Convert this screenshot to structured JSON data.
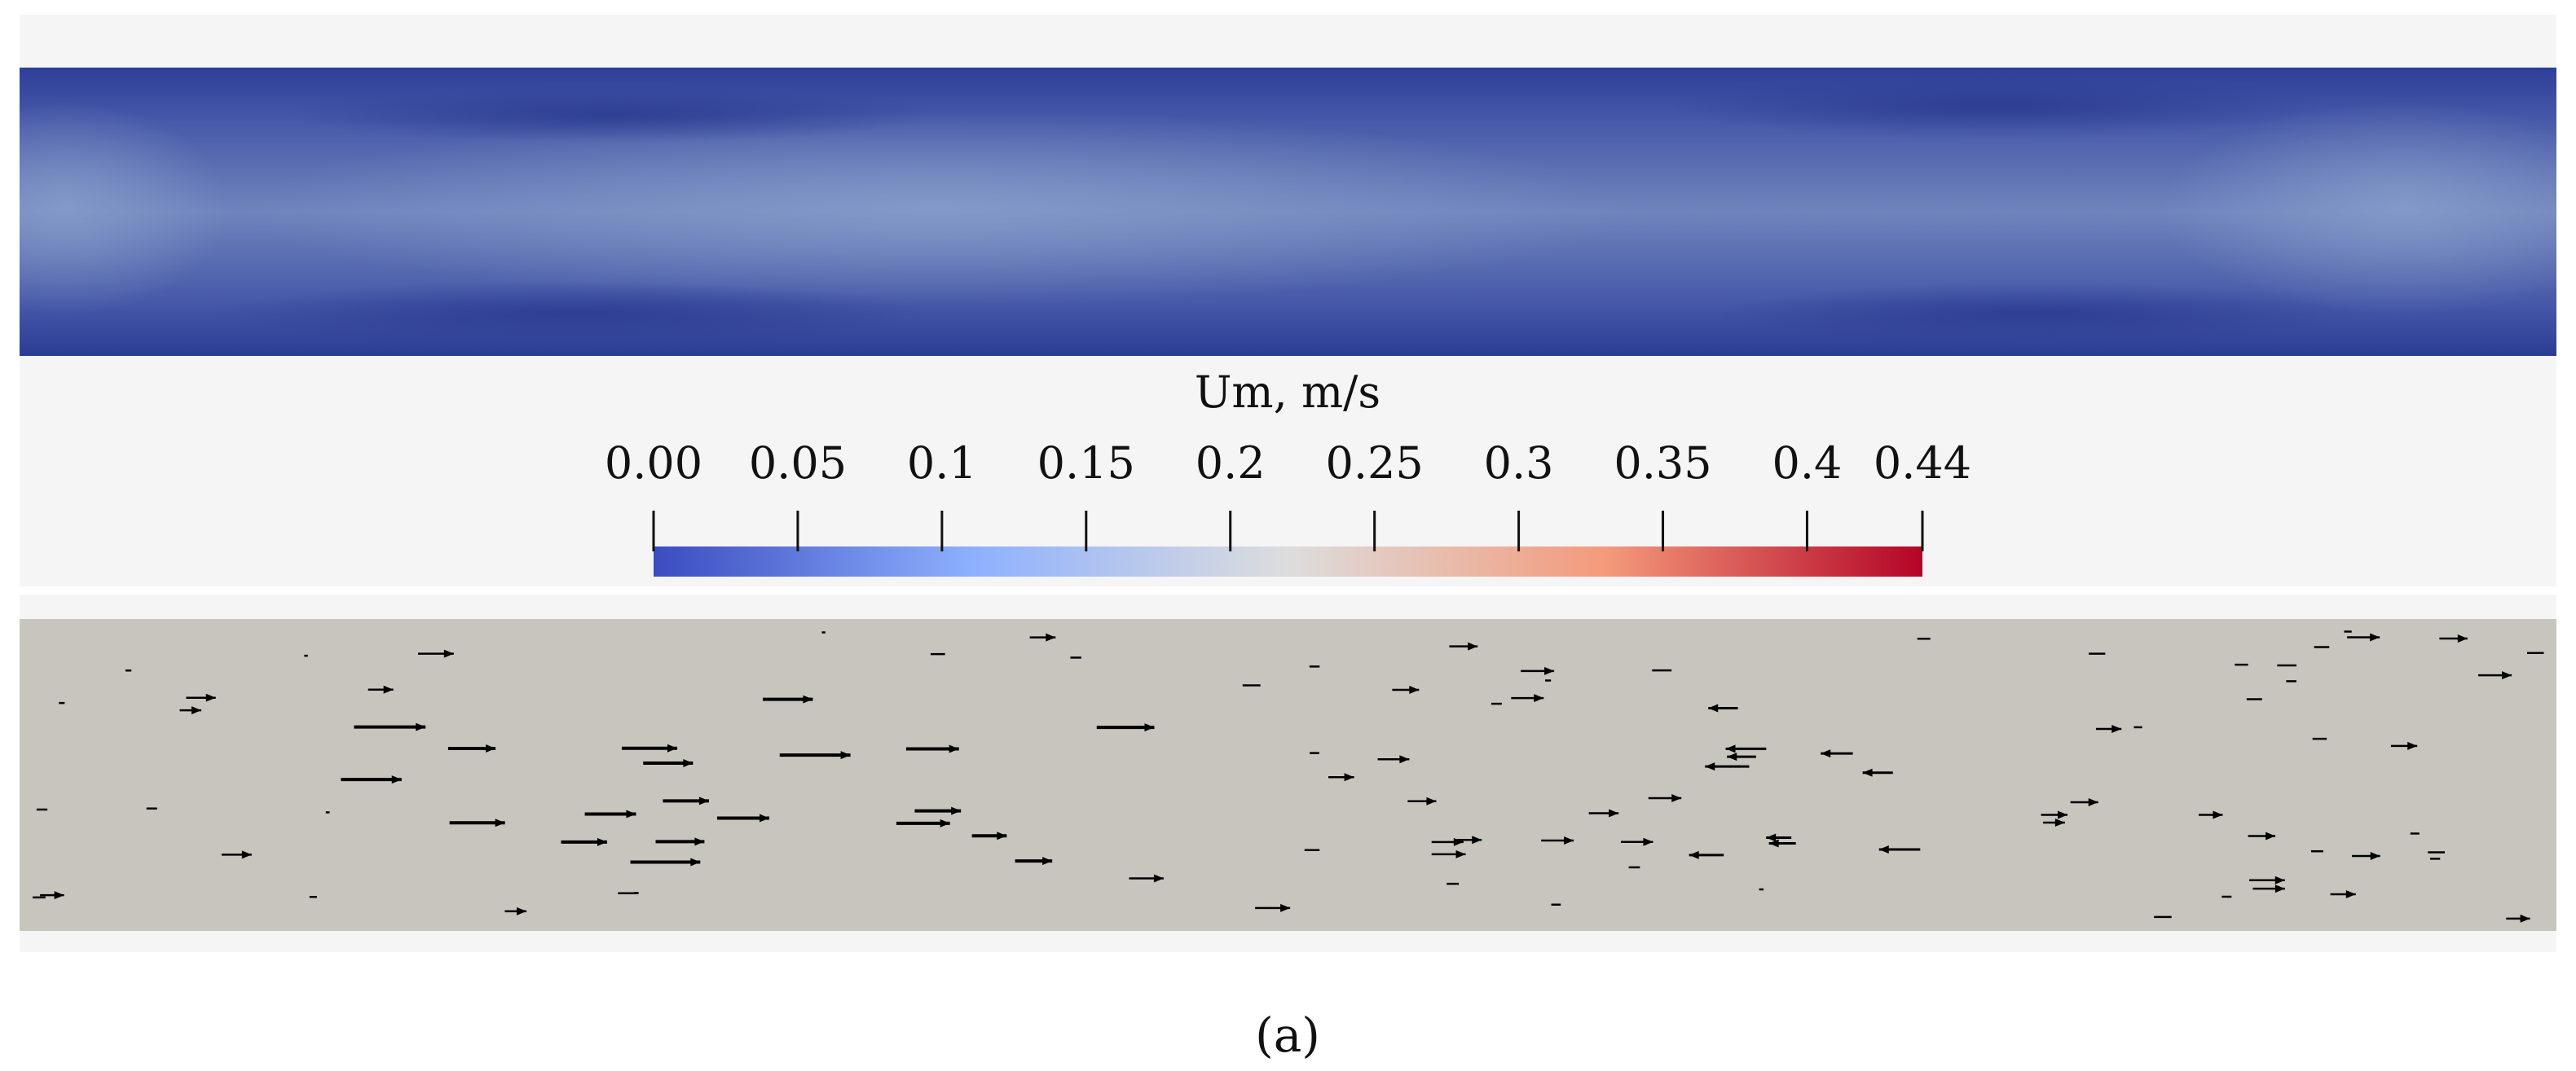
{
  "colorbar": {
    "title": "Um, m/s",
    "lim": [
      0,
      0.44
    ],
    "ticks": [
      {
        "value": 0,
        "label": "0.00"
      },
      0.05,
      0.1,
      0.15,
      0.2,
      0.25,
      0.3,
      0.35,
      0.4,
      0.44
    ],
    "colors": [
      "#3b4cc0",
      "#8db0fe",
      "#dddddd",
      "#f49a7b",
      "#b40426"
    ]
  },
  "caption": "(a)"
}
